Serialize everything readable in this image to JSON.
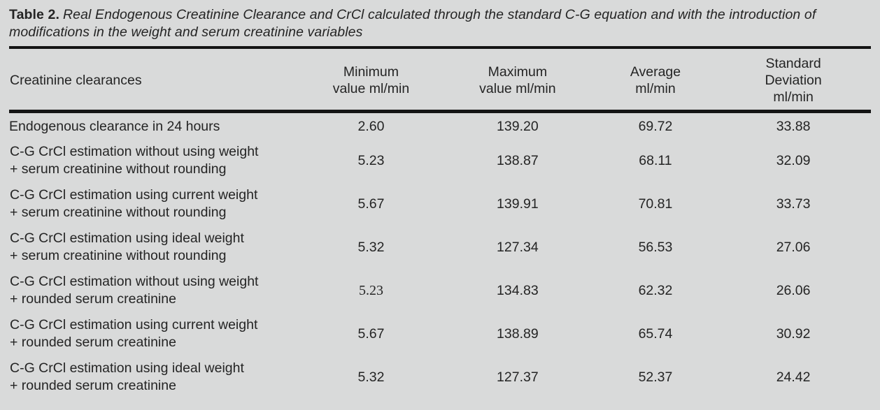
{
  "caption": {
    "label": "Table 2.",
    "text": "Real Endogenous Creatinine Clearance and CrCl calculated through the standard C-G equation and with the introduction of modifications in the weight and serum creatinine variables"
  },
  "table": {
    "columns": [
      "Creatinine clearances",
      "Minimum\nvalue ml/min",
      "Maximum\nvalue ml/min",
      "Average\nml/min",
      "Standard\nDeviation\nml/min"
    ],
    "rows": [
      {
        "label": "Endogenous clearance in 24 hours",
        "min": "2.60",
        "max": "139.20",
        "avg": "69.72",
        "sd": "33.88"
      },
      {
        "label": "C-G CrCl estimation without using weight\n+ serum creatinine without rounding",
        "min": "5.23",
        "max": "138.87",
        "avg": "68.11",
        "sd": "32.09"
      },
      {
        "label": "C-G CrCl estimation using current weight\n+ serum creatinine without rounding",
        "min": "5.67",
        "max": "139.91",
        "avg": "70.81",
        "sd": "33.73"
      },
      {
        "label": "C-G CrCl estimation using ideal weight\n+ serum creatinine without rounding",
        "min": "5.32",
        "max": "127.34",
        "avg": "56.53",
        "sd": "27.06"
      },
      {
        "label": "C-G CrCl estimation without using weight\n+ rounded serum creatinine",
        "min": "5.23",
        "max": "134.83",
        "avg": "62.32",
        "sd": "26.06"
      },
      {
        "label": "C-G CrCl estimation using current weight\n+ rounded serum creatinine",
        "min": "5.67",
        "max": "138.89",
        "avg": "65.74",
        "sd": "30.92"
      },
      {
        "label": "C-G CrCl estimation using ideal weight\n+ rounded serum creatinine",
        "min": "5.32",
        "max": "127.37",
        "avg": "52.37",
        "sd": "24.42"
      }
    ]
  },
  "colors": {
    "background": "#d9dada",
    "text": "#242424",
    "rule": "#141414"
  }
}
